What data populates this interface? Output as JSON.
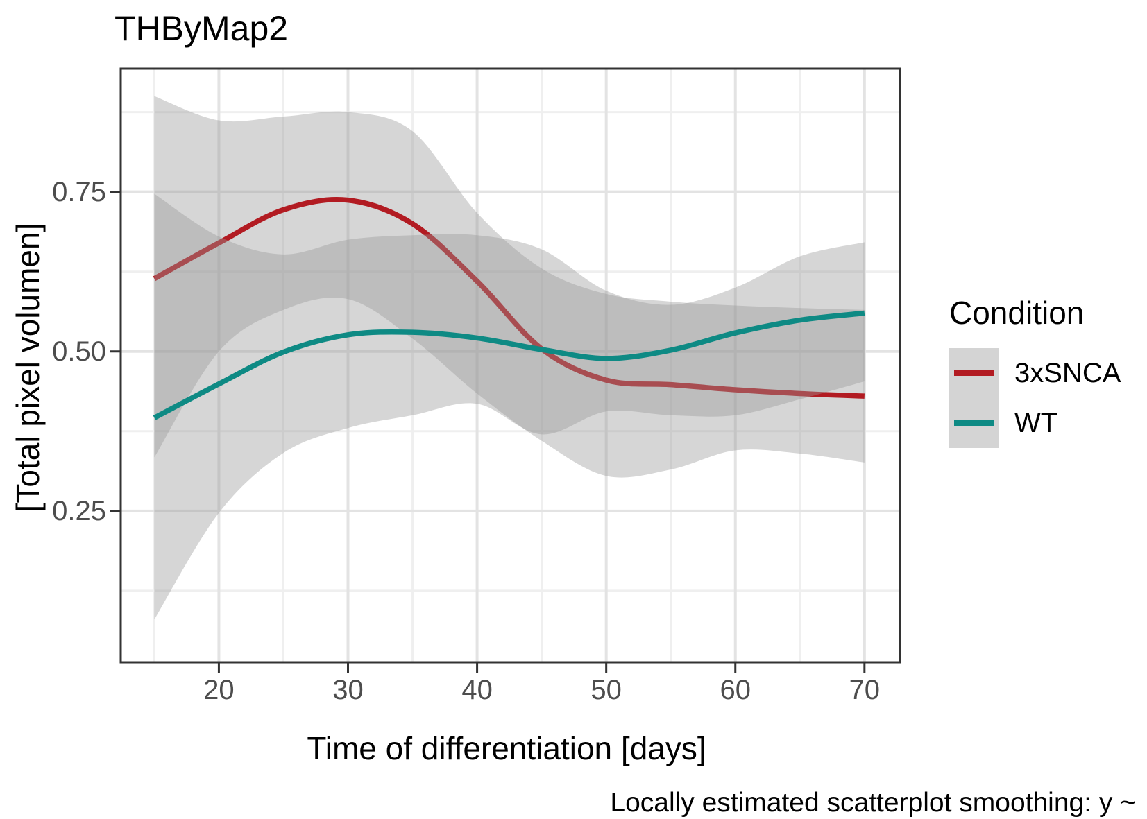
{
  "title": "THByMap2",
  "caption": "Locally estimated scatterplot smoothing: y ~",
  "axes": {
    "x": {
      "label": "Time of differentiation [days]",
      "tick_labels": [
        "20",
        "30",
        "40",
        "50",
        "60",
        "70"
      ],
      "tick_values": [
        20,
        30,
        40,
        50,
        60,
        70
      ],
      "minor_ticks": [
        15,
        25,
        35,
        45,
        55,
        65
      ],
      "domain": [
        12.4,
        72.75
      ]
    },
    "y": {
      "label": "[Total pixel volumen]",
      "tick_labels": [
        "0.25",
        "0.50",
        "0.75"
      ],
      "tick_values": [
        0.25,
        0.5,
        0.75
      ],
      "minor_ticks": [
        0.125,
        0.375,
        0.625,
        0.875
      ],
      "domain": [
        0.013,
        0.943
      ]
    }
  },
  "legend": {
    "title": "Condition",
    "entries": [
      {
        "label": "3xSNCA",
        "color": "#B21B22"
      },
      {
        "label": "WT",
        "color": "#0E8A84"
      }
    ],
    "key_fill": "#d4d4d4"
  },
  "chart_data": {
    "type": "line",
    "title": "THByMap2",
    "xlabel": "Time of differentiation [days]",
    "ylabel": "[Total pixel volumen]",
    "smoothing_method": "loess",
    "grid": "on",
    "legend_position": "right",
    "xlim": [
      12.4,
      72.75
    ],
    "ylim": [
      0.013,
      0.943
    ],
    "ribbon_fill": "rgba(153,153,153,0.4)",
    "x": [
      15,
      20,
      25,
      30,
      35,
      40,
      45,
      50,
      55,
      60,
      65,
      70
    ],
    "series": [
      {
        "name": "3xSNCA",
        "color": "#B21B22",
        "values": [
          0.614,
          0.67,
          0.722,
          0.737,
          0.7,
          0.61,
          0.504,
          0.455,
          0.448,
          0.44,
          0.434,
          0.43
        ],
        "ci_upper": [
          0.9,
          0.862,
          0.868,
          0.875,
          0.845,
          0.717,
          0.63,
          0.59,
          0.578,
          0.572,
          0.568,
          0.565
        ],
        "ci_lower": [
          0.334,
          0.5,
          0.565,
          0.582,
          0.52,
          0.434,
          0.36,
          0.305,
          0.315,
          0.345,
          0.34,
          0.326
        ]
      },
      {
        "name": "WT",
        "color": "#0E8A84",
        "values": [
          0.396,
          0.449,
          0.499,
          0.526,
          0.53,
          0.521,
          0.503,
          0.489,
          0.502,
          0.529,
          0.549,
          0.56
        ],
        "ci_upper": [
          0.747,
          0.68,
          0.652,
          0.675,
          0.682,
          0.682,
          0.66,
          0.595,
          0.573,
          0.6,
          0.649,
          0.671
        ],
        "ci_lower": [
          0.08,
          0.247,
          0.341,
          0.38,
          0.4,
          0.418,
          0.37,
          0.406,
          0.4,
          0.4,
          0.425,
          0.453
        ]
      }
    ]
  },
  "style": {
    "panel_border": "#333333",
    "tick_mark": "#333333",
    "tick_label_color": "#4d4d4d",
    "grid_major": "#e3e3e3",
    "grid_minor": "#efefef",
    "background": "#ffffff"
  }
}
